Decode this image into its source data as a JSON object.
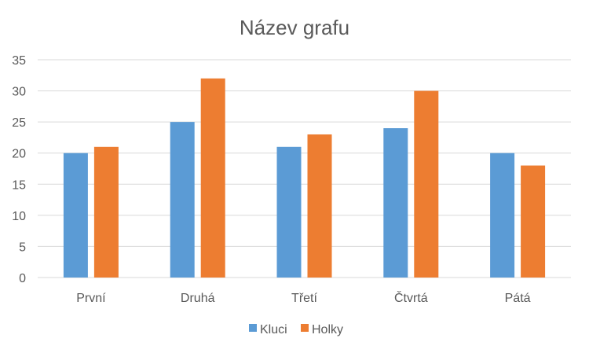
{
  "chart_data": {
    "type": "bar",
    "title": "Název grafu",
    "categories": [
      "První",
      "Druhá",
      "Třetí",
      "Čtvrtá",
      "Pátá"
    ],
    "series": [
      {
        "name": "Kluci",
        "values": [
          20,
          25,
          21,
          24,
          20
        ],
        "color": "#5B9BD5"
      },
      {
        "name": "Holky",
        "values": [
          21,
          32,
          23,
          30,
          18
        ],
        "color": "#ED7D31"
      }
    ],
    "ylim": [
      0,
      35
    ],
    "yticks": [
      "0",
      "5",
      "10",
      "15",
      "20",
      "25",
      "30",
      "35"
    ],
    "grid": true,
    "legend_position": "bottom",
    "colors": {
      "gridline": "#D9D9D9",
      "text": "#595959"
    }
  }
}
